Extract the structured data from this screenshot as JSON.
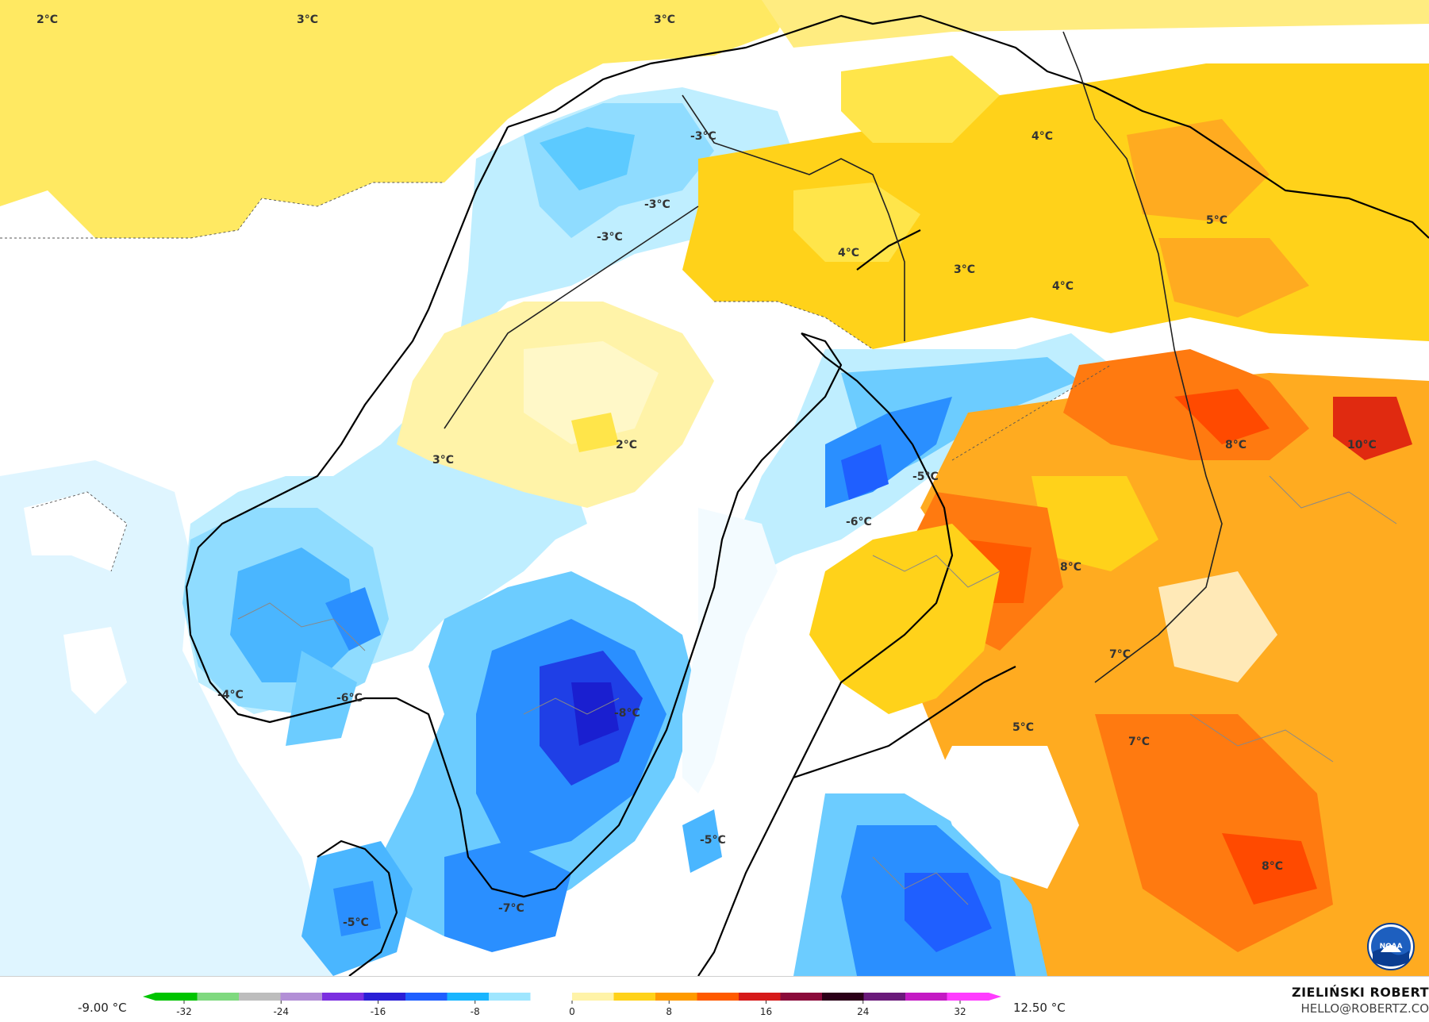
{
  "map": {
    "labels": [
      {
        "text": "2°C"
      },
      {
        "text": "3°C"
      },
      {
        "text": "3°C"
      },
      {
        "text": "-3°C"
      },
      {
        "text": "-3°C"
      },
      {
        "text": "-3°C"
      },
      {
        "text": "4°C"
      },
      {
        "text": "4°C"
      },
      {
        "text": "3°C"
      },
      {
        "text": "4°C"
      },
      {
        "text": "5°C"
      },
      {
        "text": "2°C"
      },
      {
        "text": "3°C"
      },
      {
        "text": "-5°C"
      },
      {
        "text": "-6°C"
      },
      {
        "text": "8°C"
      },
      {
        "text": "10°C"
      },
      {
        "text": "8°C"
      },
      {
        "text": "7°C"
      },
      {
        "text": "-4°C"
      },
      {
        "text": "-6°C"
      },
      {
        "text": "-8°C"
      },
      {
        "text": "5°C"
      },
      {
        "text": "7°C"
      },
      {
        "text": "-5°C"
      },
      {
        "text": "-7°C"
      },
      {
        "text": "-5°C"
      },
      {
        "text": "8°C"
      }
    ],
    "logo_text": "NOAA"
  },
  "legend": {
    "min_label": "-9.00 °C",
    "max_label": "12.50 °C",
    "ticks": [
      "-32",
      "-24",
      "-16",
      "-8",
      "0",
      "8",
      "16",
      "24",
      "32"
    ],
    "colors": [
      "#00c400",
      "#7fd97f",
      "#bdbdbd",
      "#b28fd6",
      "#7b2fe0",
      "#2a1fd6",
      "#1f5fff",
      "#19b5ff",
      "#9fe6ff",
      "#ffffff",
      "#fff3a8",
      "#ffd21a",
      "#ff9a00",
      "#ff5a00",
      "#d61a1a",
      "#8a0a3a",
      "#2b0018",
      "#6a1a7a",
      "#c41ac4",
      "#ff3cff"
    ]
  },
  "credit": {
    "name": "ZIELIŃSKI ROBERT",
    "email": "HELLO@ROBERTZ.CO"
  }
}
